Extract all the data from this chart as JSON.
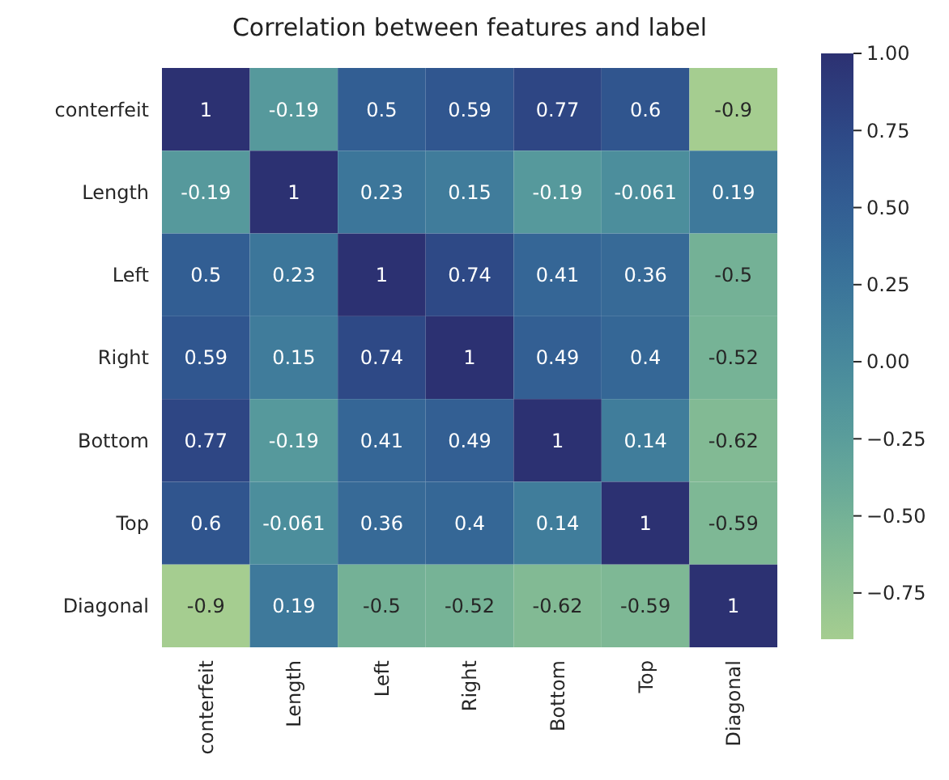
{
  "chart_data": {
    "type": "heatmap",
    "title": "Correlation between features and label",
    "categories": [
      "conterfeit",
      "Length",
      "Left",
      "Right",
      "Bottom",
      "Top",
      "Diagonal"
    ],
    "y_categories": [
      "conterfeit",
      "Length",
      "Left",
      "Right",
      "Bottom",
      "Top",
      "Diagonal"
    ],
    "cells": [
      [
        1,
        -0.19,
        0.5,
        0.59,
        0.77,
        0.6,
        -0.9
      ],
      [
        -0.19,
        1,
        0.23,
        0.15,
        -0.19,
        -0.061,
        0.19
      ],
      [
        0.5,
        0.23,
        1,
        0.74,
        0.41,
        0.36,
        -0.5
      ],
      [
        0.59,
        0.15,
        0.74,
        1,
        0.49,
        0.4,
        -0.52
      ],
      [
        0.77,
        -0.19,
        0.41,
        0.49,
        1,
        0.14,
        -0.62
      ],
      [
        0.6,
        -0.061,
        0.36,
        0.4,
        0.14,
        1,
        -0.59
      ],
      [
        -0.9,
        0.19,
        -0.5,
        -0.52,
        -0.62,
        -0.59,
        1
      ]
    ],
    "data_labels": true,
    "clim": [
      -0.9,
      1
    ],
    "cticks": [
      {
        "value": 1,
        "label": "1.00"
      },
      {
        "value": 0.75,
        "label": "0.75"
      },
      {
        "value": 0.5,
        "label": "0.50"
      },
      {
        "value": 0.25,
        "label": "0.25"
      },
      {
        "value": 0,
        "label": "0.00"
      },
      {
        "value": -0.25,
        "label": "−0.25"
      },
      {
        "value": -0.5,
        "label": "−0.50"
      },
      {
        "value": -0.75,
        "label": "−0.75"
      }
    ]
  }
}
